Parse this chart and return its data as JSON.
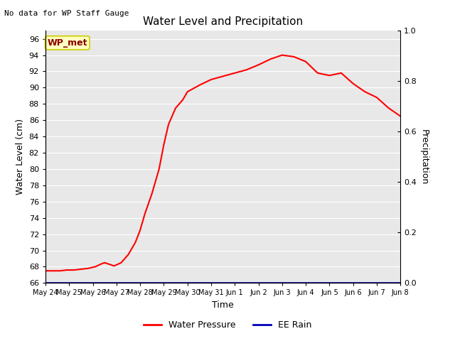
{
  "title": "Water Level and Precipitation",
  "top_left_text": "No data for WP Staff Gauge",
  "legend_label": "WP_met",
  "legend_label_color": "#8B0000",
  "legend_box_facecolor": "#FFFFC0",
  "legend_box_edgecolor": "#CCCC00",
  "xlabel": "Time",
  "ylabel_left": "Water Level (cm)",
  "ylabel_right": "Precipitation",
  "ylim_left": [
    66,
    97
  ],
  "ylim_right": [
    0.0,
    1.0
  ],
  "yticks_left": [
    66,
    68,
    70,
    72,
    74,
    76,
    78,
    80,
    82,
    84,
    86,
    88,
    90,
    92,
    94,
    96
  ],
  "yticks_right": [
    0.0,
    0.2,
    0.4,
    0.6,
    0.8,
    1.0
  ],
  "background_color": "#E8E8E8",
  "line_color": "#FF0000",
  "rain_color": "#0000BB",
  "line_width": 1.5,
  "x_dates": [
    "May 24",
    "May 25",
    "May 26",
    "May 27",
    "May 28",
    "May 29",
    "May 30",
    "May 31",
    "Jun 1",
    "Jun 2",
    "Jun 3",
    "Jun 4",
    "Jun 5",
    "Jun 6",
    "Jun 7",
    "Jun 8"
  ],
  "water_level_x": [
    0.0,
    0.3,
    0.6,
    0.9,
    1.2,
    1.5,
    1.8,
    2.1,
    2.4,
    2.5,
    2.6,
    2.7,
    2.8,
    2.9,
    3.2,
    3.5,
    3.8,
    4.0,
    4.2,
    4.5,
    4.8,
    5.0,
    5.2,
    5.5,
    5.8,
    6.0,
    6.5,
    7.0,
    7.5,
    8.0,
    8.5,
    9.0,
    9.5,
    10.0,
    10.5,
    11.0,
    11.5,
    12.0,
    12.5,
    13.0,
    13.5,
    14.0,
    14.5,
    15.0
  ],
  "water_level_y": [
    67.5,
    67.5,
    67.5,
    67.6,
    67.6,
    67.7,
    67.8,
    68.0,
    68.4,
    68.5,
    68.4,
    68.3,
    68.2,
    68.1,
    68.5,
    69.5,
    71.0,
    72.5,
    74.5,
    77.0,
    80.0,
    83.0,
    85.5,
    87.5,
    88.5,
    89.5,
    90.3,
    91.0,
    91.4,
    91.8,
    92.2,
    92.8,
    93.5,
    94.0,
    93.8,
    93.2,
    91.8,
    91.5,
    91.8,
    90.5,
    89.5,
    88.8,
    87.5,
    86.5
  ],
  "line_label": "Water Pressure",
  "rain_label": "EE Rain"
}
